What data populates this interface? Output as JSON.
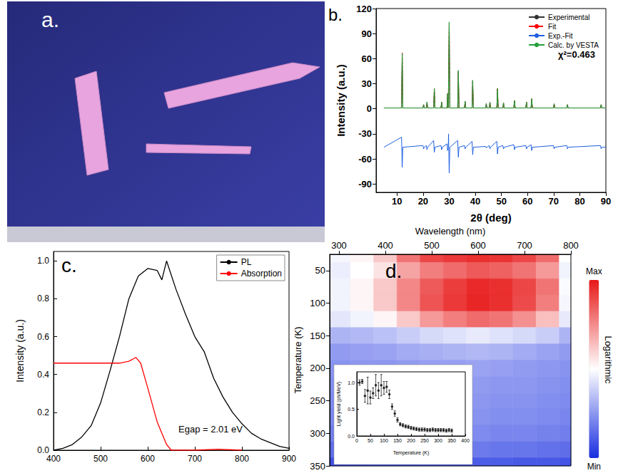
{
  "chart_data": [
    {
      "type": "photo",
      "panel_label": "a."
    },
    {
      "type": "line",
      "panel_label": "b.",
      "x": [
        5,
        11.75,
        12,
        12.25,
        19.95,
        20.2,
        20.45,
        21.25,
        21.5,
        21.75,
        24.05,
        24.3,
        24.55,
        26.85,
        27.1,
        27.35,
        29.15,
        29.4,
        29.65,
        29.75,
        30,
        30.25,
        33.25,
        33.5,
        33.75,
        35.85,
        36.1,
        36.35,
        38.75,
        39,
        39.25,
        43.95,
        44.2,
        44.45,
        45.35,
        45.6,
        45.85,
        48.25,
        48.5,
        48.75,
        50.55,
        50.8,
        51.05,
        54.75,
        55,
        55.25,
        59.35,
        59.6,
        59.85,
        61.35,
        61.6,
        61.85,
        69.95,
        70.2,
        70.45,
        75.05,
        75.3,
        75.55,
        87.95,
        88.2,
        88.45,
        90
      ],
      "series": [
        {
          "name": "Experimental",
          "color": "#333333",
          "line_style": "solid",
          "values": [
            1,
            1,
            67,
            1,
            1,
            5,
            1,
            1,
            8,
            1,
            1,
            24,
            1,
            1,
            8,
            1,
            1,
            18,
            1,
            1,
            103,
            1,
            1,
            45,
            1,
            1,
            9,
            1,
            1,
            34,
            1,
            1,
            6,
            1,
            1,
            8,
            1,
            1,
            24,
            1,
            1,
            7,
            1,
            1,
            10,
            1,
            1,
            8,
            1,
            1,
            12,
            1,
            1,
            6,
            1,
            1,
            5,
            1,
            1,
            5,
            1,
            1
          ]
        },
        {
          "name": "Fit",
          "color": "#ff0000",
          "line_style": "dashed",
          "values": [
            1,
            1,
            67,
            1,
            1,
            5,
            1,
            1,
            8,
            1,
            1,
            24,
            1,
            1,
            8,
            1,
            1,
            18,
            1,
            1,
            103,
            1,
            1,
            45,
            1,
            1,
            9,
            1,
            1,
            34,
            1,
            1,
            6,
            1,
            1,
            8,
            1,
            1,
            24,
            1,
            1,
            7,
            1,
            1,
            10,
            1,
            1,
            8,
            1,
            1,
            12,
            1,
            1,
            6,
            1,
            1,
            5,
            1,
            1,
            5,
            1,
            1
          ]
        },
        {
          "name": "Exp.-Fit",
          "color": "#1f5fe0",
          "line_style": "solid",
          "values": [
            -46,
            -34,
            -70,
            -46,
            -44,
            -48,
            -46,
            -44,
            -49,
            -46,
            -38,
            -52,
            -46,
            -44,
            -49,
            -46,
            -42,
            -50,
            -46,
            -30,
            -77,
            -46,
            -38,
            -58,
            -46,
            -44,
            -48,
            -46,
            -39,
            -55,
            -46,
            -45,
            -47,
            -46,
            -44,
            -48,
            -46,
            -39,
            -54,
            -46,
            -44,
            -48,
            -46,
            -43,
            -49,
            -46,
            -44,
            -48,
            -46,
            -43,
            -50,
            -46,
            -44,
            -48,
            -46,
            -44,
            -48,
            -46,
            -44,
            -48,
            -46,
            -46
          ]
        },
        {
          "name": "Calc. by VESTA",
          "color": "#22a03a",
          "line_style": "solid",
          "values": [
            1,
            1,
            66,
            1,
            1,
            5,
            1,
            1,
            8,
            1,
            1,
            24,
            1,
            1,
            8,
            1,
            1,
            18,
            1,
            1,
            104,
            1,
            1,
            46,
            1,
            1,
            9,
            1,
            1,
            34,
            1,
            1,
            6,
            1,
            1,
            8,
            1,
            1,
            24,
            1,
            1,
            7,
            1,
            1,
            10,
            1,
            1,
            8,
            1,
            1,
            12,
            1,
            1,
            6,
            1,
            1,
            5,
            1,
            1,
            5,
            1,
            1
          ]
        }
      ],
      "xlabel": "2θ (deg)",
      "ylabel": "Intensity (a.u.)",
      "xlim": [
        2,
        90
      ],
      "ylim": [
        -100,
        120
      ],
      "xticks": [
        10,
        20,
        30,
        40,
        50,
        60,
        70,
        80,
        90
      ],
      "yticks": [
        -90,
        -60,
        -30,
        0,
        30,
        60,
        90,
        120
      ],
      "annotations": [
        "χ²=0.463"
      ],
      "legend": "upper right",
      "grid": false
    },
    {
      "type": "line",
      "panel_label": "c.",
      "series": [
        {
          "name": "PL",
          "color": "#000000",
          "x": [
            400,
            420,
            440,
            460,
            480,
            500,
            520,
            540,
            560,
            580,
            600,
            620,
            630,
            640,
            660,
            680,
            700,
            720,
            740,
            760,
            780,
            800,
            820,
            840,
            860,
            880,
            900
          ],
          "values": [
            0,
            0.01,
            0.03,
            0.07,
            0.13,
            0.25,
            0.42,
            0.6,
            0.8,
            0.92,
            0.96,
            0.95,
            0.9,
            1.0,
            0.85,
            0.72,
            0.6,
            0.52,
            0.38,
            0.28,
            0.2,
            0.14,
            0.09,
            0.06,
            0.04,
            0.02,
            0.01
          ]
        },
        {
          "name": "Absorption",
          "color": "#ff0000",
          "x": [
            400,
            450,
            500,
            540,
            560,
            575,
            585,
            600,
            620,
            640,
            650,
            700,
            750,
            800
          ],
          "values": [
            0.46,
            0.46,
            0.46,
            0.46,
            0.47,
            0.49,
            0.46,
            0.33,
            0.15,
            0.03,
            0,
            0,
            0.005,
            0
          ]
        }
      ],
      "ylabel": "Intensity (a.u.)",
      "xlim": [
        400,
        900
      ],
      "ylim": [
        0,
        1.05
      ],
      "xticks": [
        400,
        500,
        600,
        700,
        800,
        900
      ],
      "yticks": [
        {
          "value": 0,
          "label": "0.0"
        },
        {
          "value": 0.2,
          "label": "0.2"
        },
        {
          "value": 0.4,
          "label": "0.4"
        },
        {
          "value": 0.6,
          "label": "0.6"
        },
        {
          "value": 0.8,
          "label": "0.8"
        },
        {
          "value": 1,
          "label": "1.0"
        }
      ],
      "annotations": [
        "Egap = 2.01 eV"
      ],
      "legend": "upper right",
      "grid": false
    },
    {
      "type": "heatmap",
      "panel_label": "d.",
      "x": [
        300,
        350,
        400,
        450,
        500,
        550,
        600,
        650,
        700,
        750,
        800
      ],
      "y": [
        25,
        50,
        75,
        100,
        125,
        150,
        175,
        200,
        225,
        250,
        275,
        300,
        325,
        350
      ],
      "values": [
        [
          0.48,
          0.52,
          0.62,
          0.8,
          0.9,
          0.93,
          0.95,
          0.94,
          0.9,
          0.82,
          0.5
        ],
        [
          0.46,
          0.5,
          0.56,
          0.7,
          0.78,
          0.82,
          0.86,
          0.84,
          0.8,
          0.72,
          0.47
        ],
        [
          0.47,
          0.52,
          0.62,
          0.76,
          0.86,
          0.92,
          0.96,
          0.95,
          0.9,
          0.8,
          0.49
        ],
        [
          0.47,
          0.52,
          0.62,
          0.76,
          0.87,
          0.93,
          0.97,
          0.95,
          0.89,
          0.78,
          0.48
        ],
        [
          0.44,
          0.47,
          0.52,
          0.62,
          0.72,
          0.78,
          0.82,
          0.8,
          0.74,
          0.64,
          0.45
        ],
        [
          0.32,
          0.33,
          0.35,
          0.38,
          0.41,
          0.43,
          0.45,
          0.43,
          0.41,
          0.38,
          0.32
        ],
        [
          0.26,
          0.27,
          0.28,
          0.3,
          0.31,
          0.32,
          0.33,
          0.32,
          0.3,
          0.28,
          0.26
        ],
        [
          0.24,
          0.25,
          0.25,
          0.26,
          0.27,
          0.27,
          0.28,
          0.27,
          0.26,
          0.25,
          0.24
        ],
        [
          0.23,
          0.24,
          0.24,
          0.25,
          0.25,
          0.26,
          0.26,
          0.25,
          0.25,
          0.24,
          0.23
        ],
        [
          0.22,
          0.23,
          0.23,
          0.24,
          0.24,
          0.25,
          0.25,
          0.24,
          0.24,
          0.23,
          0.22
        ],
        [
          0.21,
          0.22,
          0.22,
          0.23,
          0.23,
          0.24,
          0.24,
          0.23,
          0.23,
          0.22,
          0.21
        ],
        [
          0.19,
          0.2,
          0.2,
          0.21,
          0.21,
          0.22,
          0.22,
          0.21,
          0.21,
          0.2,
          0.19
        ],
        [
          0.15,
          0.16,
          0.16,
          0.17,
          0.17,
          0.18,
          0.18,
          0.17,
          0.17,
          0.16,
          0.15
        ],
        [
          0.08,
          0.09,
          0.1,
          0.1,
          0.11,
          0.11,
          0.11,
          0.11,
          0.1,
          0.1,
          0.09
        ]
      ],
      "xlabel": "Wavelength (nm)",
      "ylabel": "Temperature (K)",
      "xlim": [
        280,
        800
      ],
      "ylim": [
        25,
        350
      ],
      "xticks": [
        300,
        400,
        500,
        600,
        700,
        800
      ],
      "yticks": [
        50,
        100,
        150,
        200,
        250,
        300,
        350
      ],
      "colorbar": {
        "range": [
          0,
          1
        ],
        "labels": [
          "Max",
          "Min"
        ],
        "title": "Logarithmic",
        "colors": [
          "#1a2fe0",
          "#ffffff",
          "#e81818"
        ]
      },
      "inset": {
        "type": "scatter",
        "color": "#000000",
        "marker": "circle",
        "x": [
          10,
          20,
          30,
          40,
          50,
          60,
          70,
          80,
          90,
          100,
          110,
          120,
          130,
          140,
          150,
          160,
          170,
          180,
          190,
          200,
          210,
          220,
          230,
          240,
          250,
          260,
          270,
          280,
          290,
          300,
          310,
          320,
          330,
          340,
          350
        ],
        "values": [
          1.0,
          1.02,
          0.75,
          0.85,
          0.72,
          0.8,
          0.95,
          0.85,
          0.95,
          0.9,
          0.92,
          0.78,
          0.55,
          0.42,
          0.3,
          0.22,
          0.2,
          0.18,
          0.17,
          0.15,
          0.14,
          0.13,
          0.12,
          0.12,
          0.12,
          0.11,
          0.11,
          0.12,
          0.11,
          0.11,
          0.11,
          0.11,
          0.1,
          0.11,
          0.1
        ],
        "errors": [
          0.05,
          0.04,
          0.12,
          0.25,
          0.12,
          0.1,
          0.2,
          0.15,
          0.2,
          0.12,
          0.1,
          0.08,
          0.05,
          0.05,
          0.04,
          0.03,
          0.03,
          0.03,
          0.03,
          0.03,
          0.03,
          0.03,
          0.03,
          0.03,
          0.03,
          0.03,
          0.03,
          0.03,
          0.03,
          0.03,
          0.03,
          0.03,
          0.03,
          0.03,
          0.03
        ],
        "xlabel": "Temperature (K)",
        "ylabel": "Light yield (ph/MeV)",
        "xlim": [
          0,
          400
        ],
        "ylim": [
          0,
          1.2
        ],
        "xticks": [
          0,
          50,
          100,
          150,
          200,
          250,
          300,
          350,
          400
        ],
        "yticks": [
          {
            "value": 0,
            "label": "0.0"
          },
          {
            "value": 0.5,
            "label": "0.5"
          },
          {
            "value": 1,
            "label": "1.0"
          }
        ]
      }
    }
  ]
}
